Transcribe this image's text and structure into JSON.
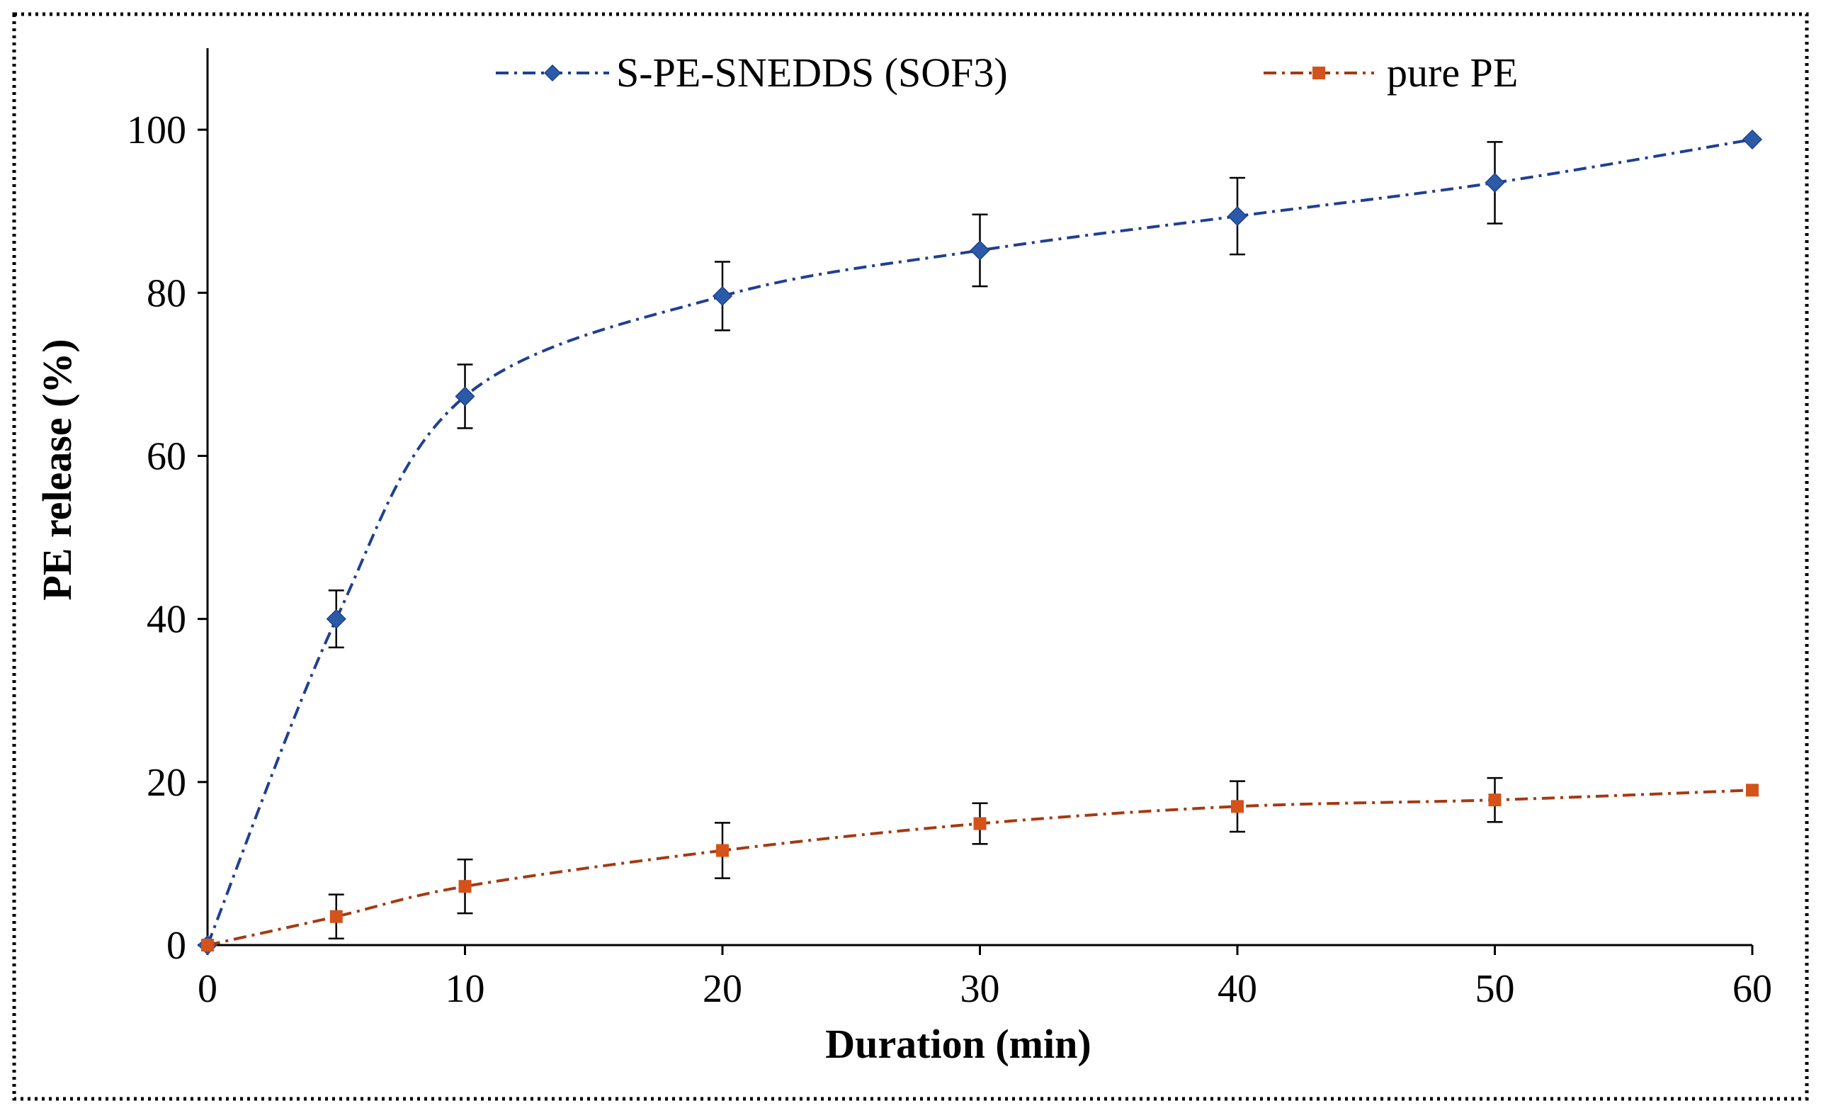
{
  "chart_data": {
    "type": "line",
    "title": "",
    "xlabel": "Duration (min)",
    "ylabel": "PE release (%)",
    "xlim": [
      0,
      60
    ],
    "ylim": [
      0,
      110
    ],
    "xticks": [
      0,
      10,
      20,
      30,
      40,
      50,
      60
    ],
    "yticks": [
      0,
      20,
      40,
      60,
      80,
      100
    ],
    "grid": false,
    "legend_position": "top-center",
    "x": [
      0,
      5,
      10,
      20,
      30,
      40,
      50,
      60
    ],
    "series": [
      {
        "name": "S-PE-SNEDDS (SOF3)",
        "color": "#2B5BA8",
        "line_color": "#1F3F91",
        "marker": "diamond",
        "line_style": "dash-dot",
        "values": [
          0,
          40.0,
          67.3,
          79.6,
          85.2,
          89.4,
          93.5,
          98.8
        ],
        "errors": [
          0,
          3.5,
          3.9,
          4.2,
          4.4,
          4.7,
          5.0,
          0
        ]
      },
      {
        "name": "pure PE",
        "color": "#D4531A",
        "line_color": "#A43A12",
        "marker": "square",
        "line_style": "dash-dot",
        "values": [
          0,
          3.5,
          7.2,
          11.6,
          14.9,
          17.0,
          17.8,
          19.0
        ],
        "errors": [
          0,
          2.7,
          3.3,
          3.4,
          2.5,
          3.1,
          2.7,
          0
        ]
      }
    ]
  }
}
